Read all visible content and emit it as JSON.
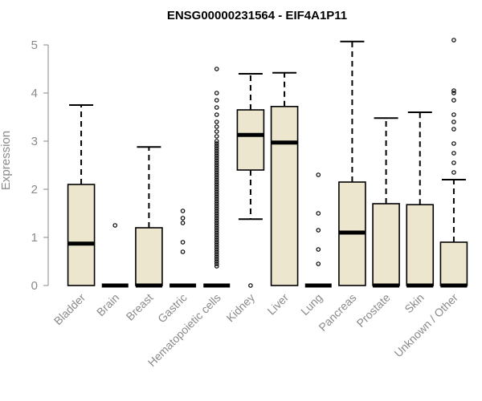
{
  "chart_data": {
    "type": "box",
    "title": "ENSG00000231564 - EIF4A1P11",
    "xlabel": "",
    "ylabel": "Expression",
    "ylim": [
      0,
      5.2
    ],
    "yticks": [
      0,
      1,
      2,
      3,
      4,
      5
    ],
    "box_fill": "#ede6cf",
    "categories": [
      "Bladder",
      "Brain",
      "Breast",
      "Gastric",
      "Hematopoietic cells",
      "Kidney",
      "Liver",
      "Lung",
      "Pancreas",
      "Prostate",
      "Skin",
      "Unknown / Other"
    ],
    "boxes": [
      {
        "min": 0,
        "q1": 0,
        "median": 0.87,
        "q3": 2.1,
        "max": 3.75,
        "outliers": []
      },
      {
        "min": 0,
        "q1": 0,
        "median": 0,
        "q3": 0,
        "max": 0,
        "outliers": [
          1.25
        ]
      },
      {
        "min": 0,
        "q1": 0,
        "median": 0,
        "q3": 1.2,
        "max": 2.88,
        "outliers": []
      },
      {
        "min": 0,
        "q1": 0,
        "median": 0,
        "q3": 0,
        "max": 0,
        "outliers": [
          0.7,
          0.9,
          1.3,
          1.4,
          1.55
        ]
      },
      {
        "min": 0,
        "q1": 0,
        "median": 0,
        "q3": 0,
        "max": 0,
        "outliers": [
          0.4,
          0.45,
          0.5,
          0.55,
          0.6,
          0.65,
          0.7,
          0.75,
          0.8,
          0.85,
          0.9,
          0.95,
          1.0,
          1.05,
          1.1,
          1.15,
          1.2,
          1.25,
          1.3,
          1.35,
          1.4,
          1.45,
          1.5,
          1.55,
          1.6,
          1.65,
          1.7,
          1.75,
          1.8,
          1.85,
          1.9,
          1.95,
          2.0,
          2.05,
          2.1,
          2.15,
          2.2,
          2.25,
          2.3,
          2.35,
          2.4,
          2.45,
          2.5,
          2.55,
          2.6,
          2.65,
          2.7,
          2.75,
          2.8,
          2.85,
          2.9,
          2.95,
          3.0,
          3.1,
          3.2,
          3.3,
          3.4,
          3.55,
          3.7,
          3.85,
          4.0,
          4.5
        ]
      },
      {
        "min": 1.38,
        "q1": 2.4,
        "median": 3.13,
        "q3": 3.65,
        "max": 4.4,
        "outliers": [
          0
        ]
      },
      {
        "min": 0,
        "q1": 0,
        "median": 2.97,
        "q3": 3.72,
        "max": 4.42,
        "outliers": []
      },
      {
        "min": 0,
        "q1": 0,
        "median": 0,
        "q3": 0,
        "max": 0,
        "outliers": [
          0.45,
          0.75,
          1.15,
          1.5,
          2.3
        ]
      },
      {
        "min": 0,
        "q1": 0,
        "median": 1.1,
        "q3": 2.15,
        "max": 5.07,
        "outliers": []
      },
      {
        "min": 0,
        "q1": 0,
        "median": 0,
        "q3": 1.7,
        "max": 3.48,
        "outliers": []
      },
      {
        "min": 0,
        "q1": 0,
        "median": 0,
        "q3": 1.68,
        "max": 3.6,
        "outliers": []
      },
      {
        "min": 0,
        "q1": 0,
        "median": 0,
        "q3": 0.9,
        "max": 2.2,
        "outliers": [
          2.35,
          2.55,
          2.75,
          2.95,
          3.25,
          3.4,
          3.55,
          3.85,
          4.0,
          4.05,
          5.1
        ]
      }
    ]
  }
}
